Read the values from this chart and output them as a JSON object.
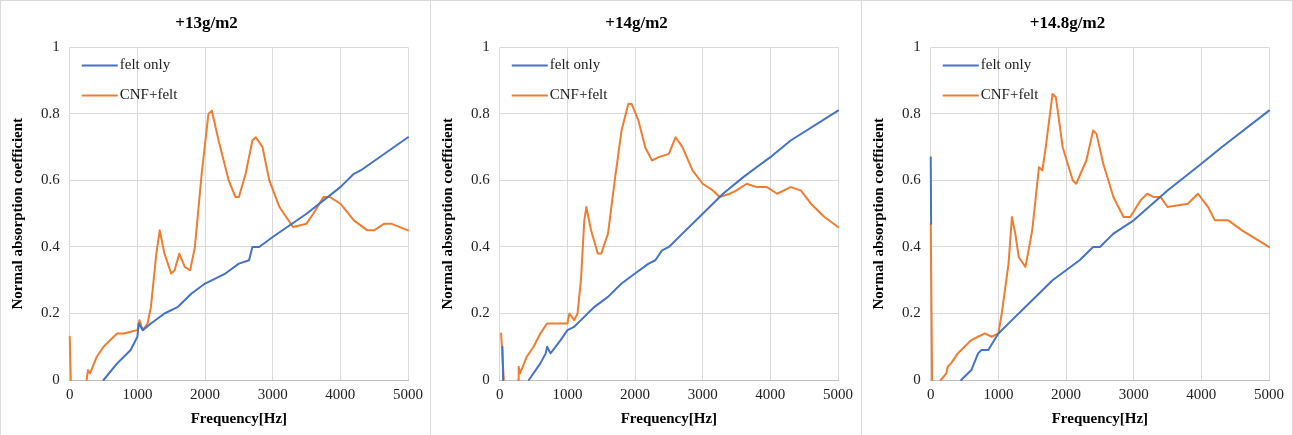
{
  "chart_data": [
    {
      "type": "line",
      "title": "+13g/m2",
      "xlabel": "Frequency[Hz]",
      "ylabel": "Normal absorption coefficient",
      "xlim": [
        0,
        5000
      ],
      "xticks": [
        0,
        1000,
        2000,
        3000,
        4000,
        5000
      ],
      "ylim": [
        0,
        1
      ],
      "yticks": [
        0,
        0.2,
        0.4,
        0.6,
        0.8,
        1
      ],
      "grid": true,
      "legend": "top left",
      "marker": "none",
      "line_style": "solid",
      "series": [
        {
          "name": "felt only",
          "color": "#4472c4",
          "x": [
            500,
            700,
            800,
            900,
            1000,
            1020,
            1080,
            1200,
            1400,
            1600,
            1800,
            2000,
            2300,
            2500,
            2650,
            2700,
            2800,
            3000,
            3500,
            4000,
            4200,
            4300,
            5000
          ],
          "values": [
            0,
            0.05,
            0.07,
            0.09,
            0.13,
            0.17,
            0.15,
            0.17,
            0.2,
            0.22,
            0.26,
            0.29,
            0.32,
            0.35,
            0.36,
            0.4,
            0.4,
            0.43,
            0.5,
            0.58,
            0.62,
            0.63,
            0.73
          ]
        },
        {
          "name": "CNF+felt",
          "color": "#ed7d31",
          "x": [
            0,
            15,
            100,
            250,
            270,
            300,
            400,
            500,
            600,
            700,
            800,
            900,
            1000,
            1030,
            1080,
            1150,
            1200,
            1280,
            1330,
            1400,
            1500,
            1550,
            1620,
            1700,
            1780,
            1850,
            1950,
            2050,
            2100,
            2200,
            2350,
            2450,
            2500,
            2600,
            2700,
            2750,
            2850,
            2950,
            3100,
            3300,
            3500,
            3600,
            3750,
            3850,
            4000,
            4200,
            4400,
            4500,
            4650,
            4750,
            5000
          ],
          "values": [
            0.13,
            0,
            null,
            0,
            0.03,
            0.02,
            0.07,
            0.1,
            0.12,
            0.14,
            0.14,
            0.145,
            0.15,
            0.18,
            0.15,
            0.17,
            0.22,
            0.38,
            0.45,
            0.38,
            0.32,
            0.33,
            0.38,
            0.34,
            0.33,
            0.4,
            0.62,
            0.8,
            0.81,
            0.72,
            0.6,
            0.55,
            0.55,
            0.62,
            0.72,
            0.73,
            0.7,
            0.6,
            0.52,
            0.46,
            0.47,
            0.5,
            0.55,
            0.55,
            0.53,
            0.48,
            0.45,
            0.45,
            0.47,
            0.47,
            0.45
          ]
        }
      ]
    },
    {
      "type": "line",
      "title": "+14g/m2",
      "xlabel": "Frequency[Hz]",
      "ylabel": "Normal absorption coefficient",
      "xlim": [
        0,
        5000
      ],
      "xticks": [
        0,
        1000,
        2000,
        3000,
        4000,
        5000
      ],
      "ylim": [
        0,
        1
      ],
      "yticks": [
        0,
        0.2,
        0.4,
        0.6,
        0.8,
        1
      ],
      "grid": true,
      "legend": "top left",
      "marker": "none",
      "line_style": "solid",
      "series": [
        {
          "name": "felt only",
          "color": "#4472c4",
          "x": [
            40,
            50,
            200,
            430,
            600,
            680,
            700,
            750,
            900,
            1000,
            1100,
            1200,
            1400,
            1600,
            1800,
            2000,
            2200,
            2300,
            2400,
            2500,
            2700,
            3000,
            3300,
            3600,
            4000,
            4300,
            5000
          ],
          "values": [
            0.1,
            0,
            null,
            0,
            0.05,
            0.08,
            0.1,
            0.08,
            0.12,
            0.15,
            0.16,
            0.18,
            0.22,
            0.25,
            0.29,
            0.32,
            0.35,
            0.36,
            0.39,
            0.4,
            0.44,
            0.5,
            0.56,
            0.61,
            0.67,
            0.72,
            0.81
          ]
        },
        {
          "name": "CNF+felt",
          "color": "#ed7d31",
          "x": [
            20,
            60,
            150,
            270,
            280,
            300,
            400,
            500,
            600,
            700,
            800,
            900,
            1000,
            1030,
            1100,
            1150,
            1200,
            1250,
            1280,
            1350,
            1450,
            1500,
            1600,
            1700,
            1800,
            1900,
            1950,
            2050,
            2150,
            2250,
            2350,
            2500,
            2600,
            2700,
            2850,
            3000,
            3150,
            3250,
            3400,
            3500,
            3650,
            3800,
            3950,
            4100,
            4300,
            4450,
            4600,
            4800,
            5000
          ],
          "values": [
            0.14,
            0,
            null,
            0,
            0.04,
            0.02,
            0.07,
            0.1,
            0.14,
            0.17,
            0.17,
            0.17,
            0.17,
            0.2,
            0.18,
            0.2,
            0.3,
            0.48,
            0.52,
            0.45,
            0.38,
            0.38,
            0.44,
            0.6,
            0.75,
            0.83,
            0.83,
            0.78,
            0.7,
            0.66,
            0.67,
            0.68,
            0.73,
            0.7,
            0.63,
            0.59,
            0.57,
            0.55,
            0.56,
            0.57,
            0.59,
            0.58,
            0.58,
            0.56,
            0.58,
            0.57,
            0.53,
            0.49,
            0.46
          ]
        }
      ]
    },
    {
      "type": "line",
      "title": "+14.8g/m2",
      "xlabel": "Frequency[Hz]",
      "ylabel": "Normal absorption coefficient",
      "xlim": [
        0,
        5000
      ],
      "xticks": [
        0,
        1000,
        2000,
        3000,
        4000,
        5000
      ],
      "ylim": [
        0,
        1
      ],
      "yticks": [
        0,
        0.2,
        0.4,
        0.6,
        0.8,
        1
      ],
      "grid": true,
      "legend": "top left",
      "marker": "none",
      "line_style": "solid",
      "series": [
        {
          "name": "felt only",
          "color": "#4472c4",
          "x": [
            0,
            5,
            200,
            450,
            600,
            700,
            750,
            850,
            1000,
            1200,
            1500,
            1800,
            2000,
            2200,
            2400,
            2500,
            2700,
            3000,
            3500,
            4000,
            4300,
            5000
          ],
          "values": [
            0.67,
            0.47,
            null,
            0,
            0.03,
            0.08,
            0.09,
            0.09,
            0.14,
            0.18,
            0.24,
            0.3,
            0.33,
            0.36,
            0.4,
            0.4,
            0.44,
            0.48,
            0.57,
            0.65,
            0.7,
            0.81
          ]
        },
        {
          "name": "CNF+felt",
          "color": "#ed7d31",
          "x": [
            0,
            20,
            80,
            150,
            230,
            250,
            300,
            400,
            500,
            600,
            700,
            800,
            900,
            1000,
            1050,
            1150,
            1200,
            1250,
            1300,
            1400,
            1500,
            1600,
            1650,
            1700,
            1800,
            1850,
            1950,
            2100,
            2150,
            2300,
            2400,
            2450,
            2550,
            2700,
            2850,
            2950,
            3100,
            3200,
            3300,
            3400,
            3500,
            3800,
            3950,
            4100,
            4200,
            4400,
            4600,
            5000
          ],
          "values": [
            0.47,
            0,
            null,
            0,
            0.02,
            0.04,
            0.05,
            0.08,
            0.1,
            0.12,
            0.13,
            0.14,
            0.13,
            0.14,
            0.2,
            0.35,
            0.49,
            0.44,
            0.37,
            0.34,
            0.45,
            0.64,
            0.63,
            0.7,
            0.86,
            0.85,
            0.7,
            0.6,
            0.59,
            0.66,
            0.75,
            0.74,
            0.65,
            0.55,
            0.49,
            0.49,
            0.54,
            0.56,
            0.55,
            0.55,
            0.52,
            0.53,
            0.56,
            0.52,
            0.48,
            0.48,
            0.45,
            0.4
          ]
        }
      ]
    }
  ]
}
